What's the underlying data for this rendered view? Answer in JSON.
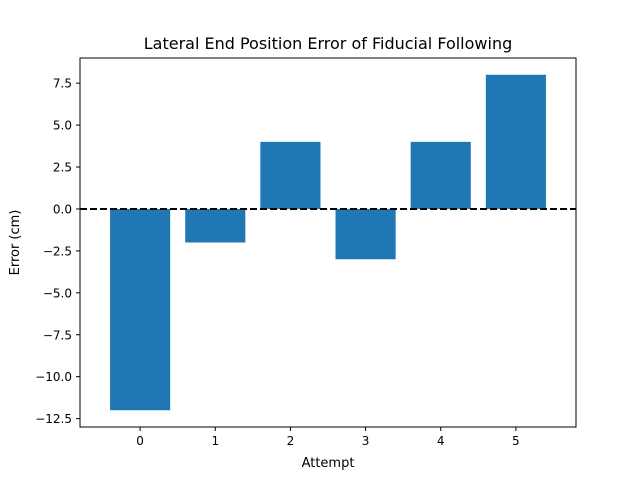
{
  "chart_data": {
    "type": "bar",
    "title": "Lateral End Position Error of Fiducial Following",
    "xlabel": "Attempt",
    "ylabel": "Error (cm)",
    "categories": [
      "0",
      "1",
      "2",
      "3",
      "4",
      "5"
    ],
    "values": [
      -12,
      -2,
      4,
      -3,
      4,
      8
    ],
    "ylim": [
      -13.0,
      9.0
    ],
    "yticks": [
      7.5,
      5.0,
      2.5,
      0.0,
      -2.5,
      -5.0,
      -7.5,
      -10.0,
      -12.5
    ],
    "ytick_labels": [
      "7.5",
      "5.0",
      "2.5",
      "0.0",
      "−2.5",
      "−5.0",
      "−7.5",
      "−10.0",
      "−12.5"
    ],
    "reference_line": {
      "y": 0,
      "style": "dashed",
      "color": "#000000"
    },
    "bar_color": "#1f77b4",
    "grid": false,
    "legend": "none"
  }
}
